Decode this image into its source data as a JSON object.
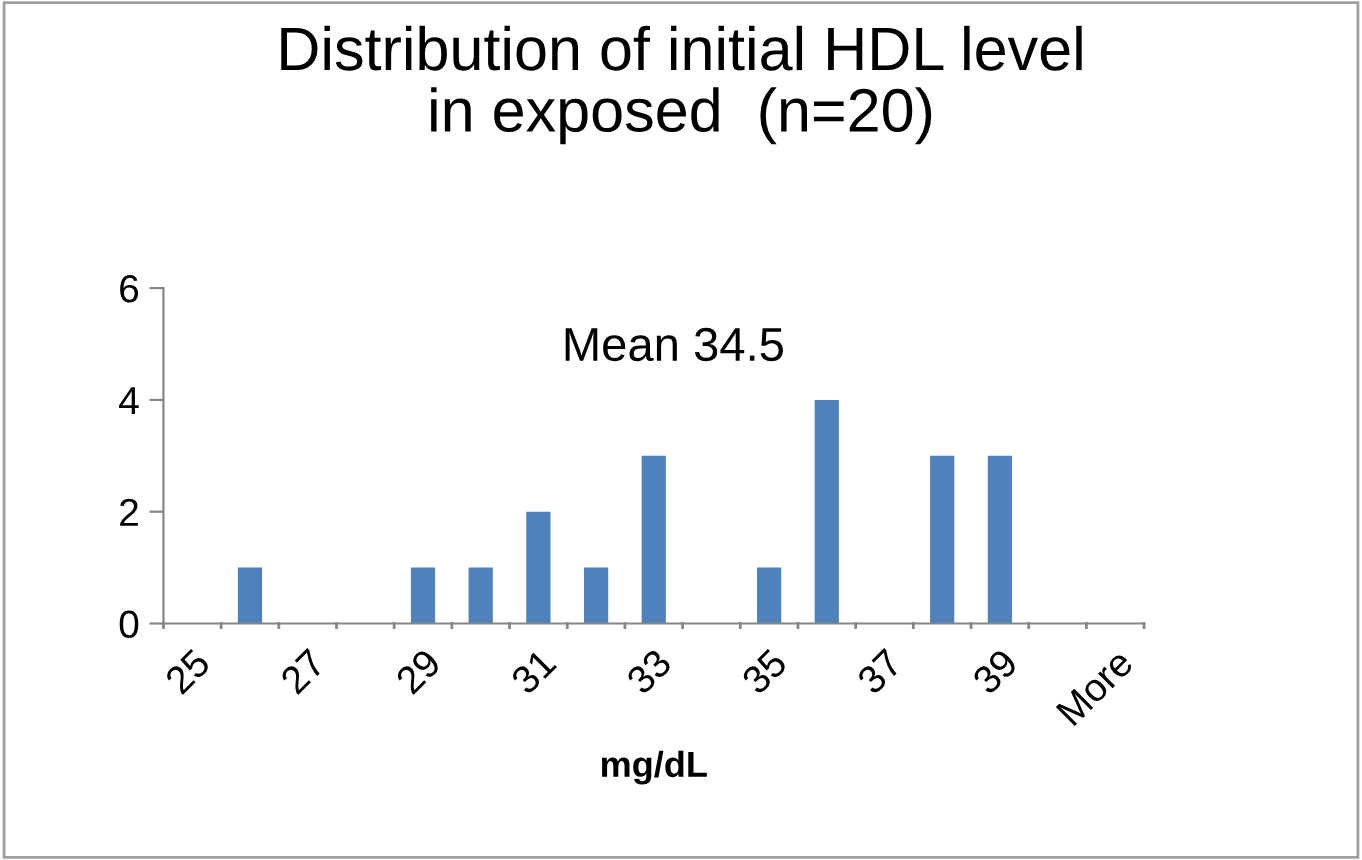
{
  "chart_data": {
    "type": "bar",
    "title": "Distribution of initial HDL level\nin exposed  (n=20)",
    "xlabel": "mg/dL",
    "annotations": [
      "Mean 34.5"
    ],
    "categories": [
      "25",
      null,
      "27",
      null,
      "29",
      null,
      "31",
      null,
      "33",
      null,
      "35",
      null,
      "37",
      null,
      "39",
      null,
      "More"
    ],
    "values": [
      0,
      1,
      0,
      0,
      1,
      1,
      2,
      1,
      3,
      0,
      1,
      4,
      0,
      3,
      3,
      0,
      0
    ],
    "color": "#4f81bd",
    "ylim": [
      0,
      6
    ],
    "yticks": [
      0,
      2,
      4,
      6
    ],
    "grid": false,
    "legend": false
  }
}
